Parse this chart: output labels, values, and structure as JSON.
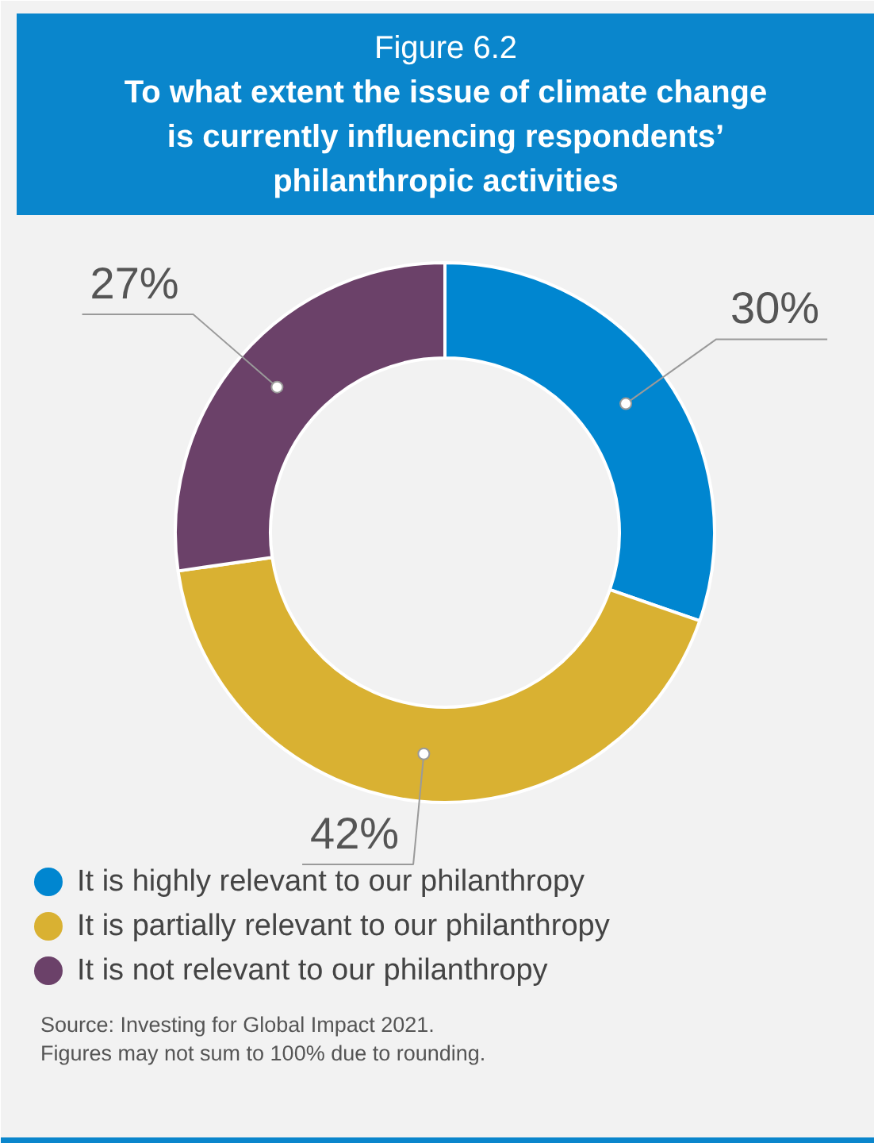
{
  "chart_data": {
    "type": "donut",
    "title": "Figure 6.2",
    "subtitle": "To what extent the issue of climate change is currently influencing respondents’ philanthropic activities",
    "categories": [
      "It is highly relevant to our philanthropy",
      "It is partially relevant to our philanthropy",
      "It is not relevant to our philanthropy"
    ],
    "values": [
      30,
      42,
      27
    ],
    "colors": [
      "#0086d0",
      "#d9b132",
      "#6b4169"
    ],
    "value_labels": [
      "30%",
      "42%",
      "27%"
    ],
    "legend": "bottom",
    "annotations": [
      "Source: Investing for Global Impact 2021.",
      "Figures may not sum to 100% due to rounding."
    ]
  }
}
